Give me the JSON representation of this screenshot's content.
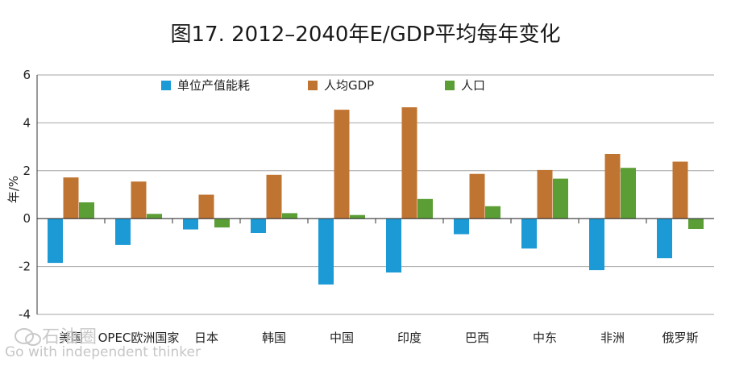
{
  "chart_data": {
    "type": "bar",
    "title": "图17. 2012–2040年E/GDP平均每年变化",
    "ylabel": "年/%",
    "ylim": [
      -4,
      6
    ],
    "yticks": [
      -4,
      -2,
      0,
      2,
      4,
      6
    ],
    "grid": true,
    "legend_position": "top",
    "categories": [
      "美国",
      "OPEC欧洲国家",
      "日本",
      "韩国",
      "中国",
      "印度",
      "巴西",
      "中东",
      "非洲",
      "俄罗斯"
    ],
    "series": [
      {
        "name": "单位产值能耗",
        "color": "#1b9ad6",
        "values": [
          -1.85,
          -1.1,
          -0.45,
          -0.6,
          -2.75,
          -2.25,
          -0.65,
          -1.25,
          -2.15,
          -1.65
        ]
      },
      {
        "name": "人均GDP",
        "color": "#c07431",
        "values": [
          1.72,
          1.55,
          1.0,
          1.83,
          4.55,
          4.65,
          1.87,
          2.03,
          2.7,
          2.38
        ]
      },
      {
        "name": "人口",
        "color": "#5b9e35",
        "values": [
          0.68,
          0.2,
          -0.37,
          0.23,
          0.15,
          0.82,
          0.52,
          1.67,
          2.12,
          -0.43
        ]
      }
    ]
  },
  "watermark": {
    "logo_text": "石油圈",
    "tagline": "Go with independent thinker",
    "icon": "wechat-icon"
  }
}
